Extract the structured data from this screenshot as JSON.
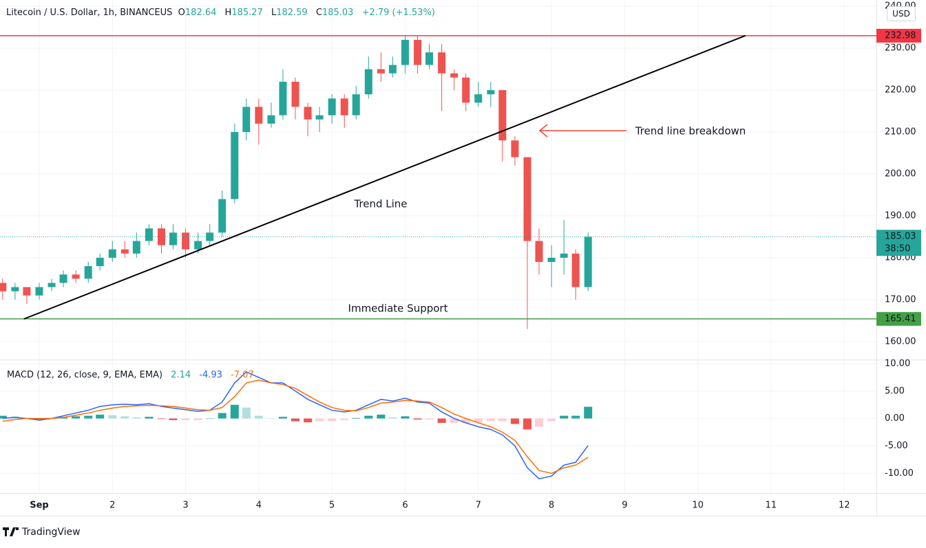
{
  "header": {
    "symbol": "Litecoin / U.S. Dollar, 1h, BINANCEUS",
    "ohlc": [
      {
        "label": "O",
        "value": 182.64
      },
      {
        "label": "H",
        "value": 185.27
      },
      {
        "label": "L",
        "value": 182.59
      },
      {
        "label": "C",
        "value": 185.03
      }
    ],
    "change": "+2.79 (+1.53%)",
    "currency": "USD"
  },
  "footer": {
    "brand": "TradingView"
  },
  "chart_data": [
    {
      "type": "candlestick",
      "x": [
        0.5,
        0.67,
        0.83,
        1,
        1.17,
        1.33,
        1.5,
        1.67,
        1.83,
        2,
        2.17,
        2.33,
        2.5,
        2.67,
        2.83,
        3,
        3.17,
        3.33,
        3.5,
        3.67,
        3.83,
        4,
        4.17,
        4.33,
        4.5,
        4.67,
        4.83,
        5,
        5.17,
        5.33,
        5.5,
        5.67,
        5.83,
        6,
        6.17,
        6.33,
        6.5,
        6.67,
        6.83,
        7,
        7.17,
        7.33,
        7.5,
        7.67,
        7.83,
        8,
        8.17,
        8.33,
        8.5
      ],
      "open": [
        174,
        172,
        173,
        171,
        173,
        174,
        176,
        175,
        178,
        180,
        182,
        181,
        184,
        187,
        183,
        186,
        182,
        184,
        186,
        194,
        210,
        216,
        212,
        214,
        222,
        216,
        213,
        214,
        218,
        214,
        219,
        225,
        224,
        226,
        232,
        226,
        229,
        224,
        223,
        217,
        219,
        220,
        208,
        204,
        184,
        179,
        180,
        181,
        173
      ],
      "high": [
        175,
        174,
        173,
        174,
        175,
        177,
        177,
        179,
        181,
        184,
        184,
        186,
        188,
        188,
        188,
        187,
        186,
        188,
        196,
        212,
        218,
        218,
        217,
        225,
        223,
        217,
        216,
        219,
        219,
        221,
        228,
        229,
        228,
        233,
        233,
        231,
        231,
        225,
        224,
        222,
        222,
        220,
        209,
        204,
        187,
        183,
        189,
        182,
        186
      ],
      "low": [
        170,
        170,
        169,
        170,
        172,
        173,
        174,
        174,
        177,
        179,
        180,
        180,
        183,
        181,
        182,
        180,
        181,
        183,
        185,
        193,
        208,
        207,
        211,
        213,
        213,
        209,
        210,
        212,
        211,
        213,
        218,
        222,
        223,
        224,
        224,
        225,
        215,
        220,
        215,
        216,
        216,
        203,
        202,
        163,
        176,
        173,
        176,
        170,
        172
      ],
      "close": [
        172,
        173,
        171,
        173,
        174,
        176,
        175,
        178,
        180,
        182,
        181,
        184,
        187,
        183,
        186,
        182,
        184,
        186,
        194,
        210,
        216,
        212,
        214,
        222,
        216,
        213,
        214,
        218,
        214,
        219,
        225,
        224,
        226,
        232,
        226,
        229,
        224,
        223,
        217,
        219,
        220,
        208,
        204,
        184,
        179,
        180,
        181,
        173,
        185
      ],
      "up_color": "#26a69a",
      "down_color": "#ef5350",
      "xlim": [
        0.464,
        12.44
      ],
      "xticks": [
        {
          "value": 1,
          "label": "Sep"
        },
        2,
        3,
        4,
        5,
        6,
        7,
        8,
        9,
        10,
        11,
        12
      ],
      "ylim": [
        155.7,
        241.5
      ],
      "yticks": [
        {
          "value": 160,
          "label": "160.00"
        },
        {
          "value": 170,
          "label": "170.00"
        },
        {
          "value": 180,
          "label": "180.00"
        },
        {
          "value": 190,
          "label": "190.00"
        },
        {
          "value": 200,
          "label": "200.00"
        },
        {
          "value": 210,
          "label": "210.00"
        },
        {
          "value": 220,
          "label": "220.00"
        },
        {
          "value": 230,
          "label": "230.00"
        },
        {
          "value": 240,
          "label": "240.00"
        }
      ],
      "grid": true,
      "horizontal_lines": [
        {
          "value": 232.98,
          "color": "#f23645"
        },
        {
          "value": 165.41,
          "color": "#43a047"
        }
      ],
      "last_price": {
        "value": 185.03,
        "countdown": "38:50",
        "color": "#26a69a"
      },
      "trend_line": {
        "x": [
          0.79,
          10.65
        ],
        "y": [
          165.4,
          233
        ],
        "color": "#000000"
      },
      "annotations": [
        {
          "text": "Trend Line",
          "color": "#131722"
        },
        {
          "text": "Immediate Support",
          "color": "#388e3c"
        },
        {
          "text": "Trend line breakdown",
          "color": "#f44336"
        }
      ]
    },
    {
      "type": "macd",
      "title": "MACD (12, 26, close, 9, EMA, EMA)",
      "x": [
        0.5,
        0.67,
        0.83,
        1,
        1.17,
        1.33,
        1.5,
        1.67,
        1.83,
        2,
        2.17,
        2.33,
        2.5,
        2.67,
        2.83,
        3,
        3.17,
        3.33,
        3.5,
        3.67,
        3.83,
        4,
        4.17,
        4.33,
        4.5,
        4.67,
        4.83,
        5,
        5.17,
        5.33,
        5.5,
        5.67,
        5.83,
        6,
        6.17,
        6.33,
        6.5,
        6.67,
        6.83,
        7,
        7.17,
        7.33,
        7.5,
        7.67,
        7.83,
        8,
        8.17,
        8.33,
        8.5
      ],
      "series": [
        {
          "kind": "histogram",
          "color": "#26a69a",
          "values": [
            0.5,
            0.4,
            0,
            -0.3,
            0,
            0.3,
            0.4,
            0.5,
            0.7,
            0.6,
            0.4,
            0.2,
            0.3,
            -0.1,
            -0.3,
            -0.3,
            -0.3,
            0,
            1,
            2.5,
            2,
            0.5,
            0,
            0.3,
            -0.5,
            -0.7,
            -0.5,
            -0.5,
            -0.3,
            0.1,
            0.5,
            0.7,
            0.2,
            0.4,
            -0.2,
            -0.2,
            -0.8,
            -0.8,
            -0.8,
            -0.7,
            -0.5,
            -0.5,
            -1,
            -2,
            -1.5,
            -0.5,
            0.5,
            0.5,
            2.14
          ]
        },
        {
          "kind": "line",
          "color": "#2962ff",
          "values": [
            0,
            0.2,
            0,
            -0.3,
            0,
            0.5,
            1,
            1.5,
            2.2,
            2.5,
            2.6,
            2.5,
            2.7,
            2.2,
            1.9,
            1.6,
            1.3,
            1.5,
            3,
            6.5,
            8.5,
            7.5,
            6.5,
            6.5,
            5,
            3.5,
            2.5,
            1.5,
            1.2,
            1.5,
            2.5,
            3.5,
            3.2,
            3.7,
            3,
            2.8,
            1.2,
            0,
            -0.8,
            -1.5,
            -2,
            -3,
            -5,
            -9,
            -11,
            -10.5,
            -8.5,
            -8,
            -4.93
          ]
        },
        {
          "kind": "line",
          "color": "#ff6d00",
          "values": [
            -0.5,
            -0.2,
            0,
            0,
            0,
            0.2,
            0.6,
            1,
            1.5,
            1.9,
            2.2,
            2.3,
            2.4,
            2.3,
            2.2,
            1.9,
            1.6,
            1.5,
            2,
            4,
            6.5,
            7,
            6.5,
            6.2,
            5.5,
            4.2,
            3,
            2,
            1.5,
            1.4,
            2,
            2.8,
            3,
            3.3,
            3.2,
            3,
            2,
            0.8,
            0,
            -0.8,
            -1.5,
            -2.5,
            -4,
            -7,
            -9.5,
            -10,
            -9,
            -8.5,
            -7.07
          ]
        }
      ],
      "xlim": [
        0.464,
        12.44
      ],
      "ylim": [
        -13.6,
        10.75
      ],
      "yticks": [
        {
          "value": -10,
          "label": "-10.00"
        },
        {
          "value": -5,
          "label": "-5.00"
        },
        {
          "value": 0,
          "label": "0.00"
        },
        {
          "value": 5,
          "label": "5.00"
        },
        {
          "value": 10,
          "label": "10.00"
        }
      ]
    }
  ]
}
